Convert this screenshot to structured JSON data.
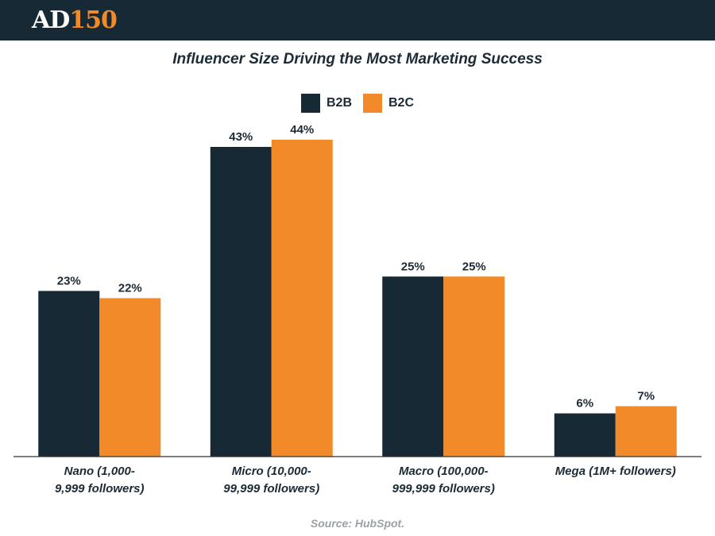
{
  "brand": {
    "logo_left": "AD",
    "logo_right": "150"
  },
  "colors": {
    "b2b": "#162935",
    "b2c": "#f28a2a",
    "header": "#162935"
  },
  "chart_data": {
    "type": "bar",
    "title": "Influencer Size Driving the Most Marketing Success",
    "categories": [
      [
        "Nano (1,000-",
        "9,999 followers)"
      ],
      [
        "Micro (10,000-",
        "99,999 followers)"
      ],
      [
        "Macro (100,000-",
        "999,999 followers)"
      ],
      [
        "Mega (1M+ followers)"
      ]
    ],
    "series": [
      {
        "name": "B2B",
        "values": [
          23,
          43,
          25,
          6
        ]
      },
      {
        "name": "B2C",
        "values": [
          22,
          44,
          25,
          7
        ]
      }
    ],
    "value_suffix": "%",
    "ylim": [
      0,
      50
    ],
    "legend": "top-center",
    "grid": false
  },
  "source": "Source: HubSpot."
}
